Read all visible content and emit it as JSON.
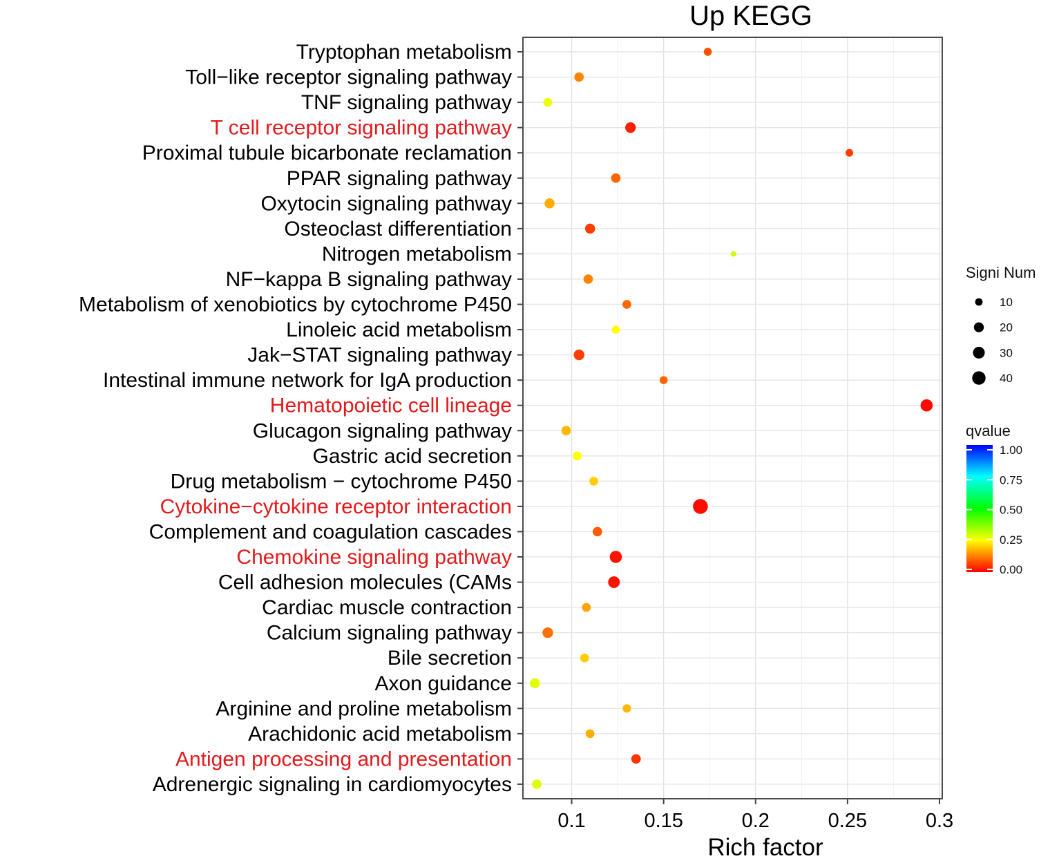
{
  "chart_data": {
    "type": "scatter",
    "title": "Up  KEGG",
    "xlabel": "Rich factor",
    "ylabel": "",
    "xlim": [
      0.0735,
      0.3015
    ],
    "xticks": [
      0.1,
      0.15,
      0.2,
      0.25,
      0.3
    ],
    "xtick_labels": [
      "0.1",
      "0.15",
      "0.2",
      "0.25",
      "0.3"
    ],
    "grid": true,
    "categories_top_to_bottom": [
      "Tryptophan metabolism",
      "Toll−like receptor signaling pathway",
      "TNF signaling pathway",
      "T cell receptor signaling pathway",
      "Proximal tubule bicarbonate reclamation",
      "PPAR signaling pathway",
      "Oxytocin signaling pathway",
      "Osteoclast differentiation",
      "Nitrogen metabolism",
      "NF−kappa B signaling pathway",
      "Metabolism of xenobiotics by cytochrome P450",
      "Linoleic acid metabolism",
      "Jak−STAT signaling pathway",
      "Intestinal immune network for IgA production",
      "Hematopoietic cell lineage",
      "Glucagon signaling pathway",
      "Gastric acid secretion",
      "Drug metabolism − cytochrome P450",
      "Cytokine−cytokine receptor interaction",
      "Complement and coagulation cascades",
      "Chemokine signaling pathway",
      "Cell adhesion molecules (CAMs",
      "Cardiac muscle contraction",
      "Calcium signaling pathway",
      "Bile secretion",
      "Axon guidance",
      "Arginine and proline metabolism",
      "Arachidonic acid metabolism",
      "Antigen processing and presentation",
      "Adrenergic signaling in cardiomyocytes"
    ],
    "highlighted_categories": [
      "T cell receptor signaling pathway",
      "Hematopoietic cell lineage",
      "Cytokine−cytokine receptor interaction",
      "Chemokine signaling pathway",
      "Antigen processing and presentation"
    ],
    "highlight_color": "#e31a1c",
    "x": [
      0.174,
      0.104,
      0.087,
      0.132,
      0.251,
      0.124,
      0.088,
      0.11,
      0.188,
      0.109,
      0.13,
      0.124,
      0.104,
      0.15,
      0.293,
      0.097,
      0.103,
      0.112,
      0.17,
      0.114,
      0.124,
      0.123,
      0.108,
      0.087,
      0.107,
      0.08,
      0.13,
      0.11,
      0.135,
      0.081
    ],
    "size_values": [
      8,
      12,
      10,
      16,
      7,
      12,
      14,
      14,
      3,
      12,
      10,
      8,
      16,
      8,
      22,
      12,
      10,
      10,
      35,
      12,
      22,
      20,
      10,
      16,
      10,
      14,
      9,
      10,
      12,
      12
    ],
    "qvalues": [
      0.08,
      0.13,
      0.27,
      0.03,
      0.06,
      0.1,
      0.17,
      0.06,
      0.3,
      0.13,
      0.1,
      0.25,
      0.06,
      0.1,
      0.01,
      0.18,
      0.25,
      0.2,
      0.01,
      0.09,
      0.02,
      0.02,
      0.16,
      0.11,
      0.2,
      0.28,
      0.18,
      0.17,
      0.05,
      0.28
    ],
    "size_legend": {
      "title": "Signi Num",
      "values": [
        10,
        20,
        30,
        40
      ],
      "labels": [
        "10",
        "20",
        "30",
        "40"
      ]
    },
    "color_legend": {
      "title": "qvalue",
      "range": [
        0,
        1
      ],
      "ticks": [
        1.0,
        0.75,
        0.5,
        0.25,
        0.0
      ],
      "tick_labels": [
        "1.00",
        "0.75",
        "0.50",
        "0.25",
        "0.00"
      ],
      "colors_low_to_high": [
        "#ff0000",
        "#ffff00",
        "#00ff00",
        "#00ffff",
        "#0000ff"
      ]
    }
  }
}
